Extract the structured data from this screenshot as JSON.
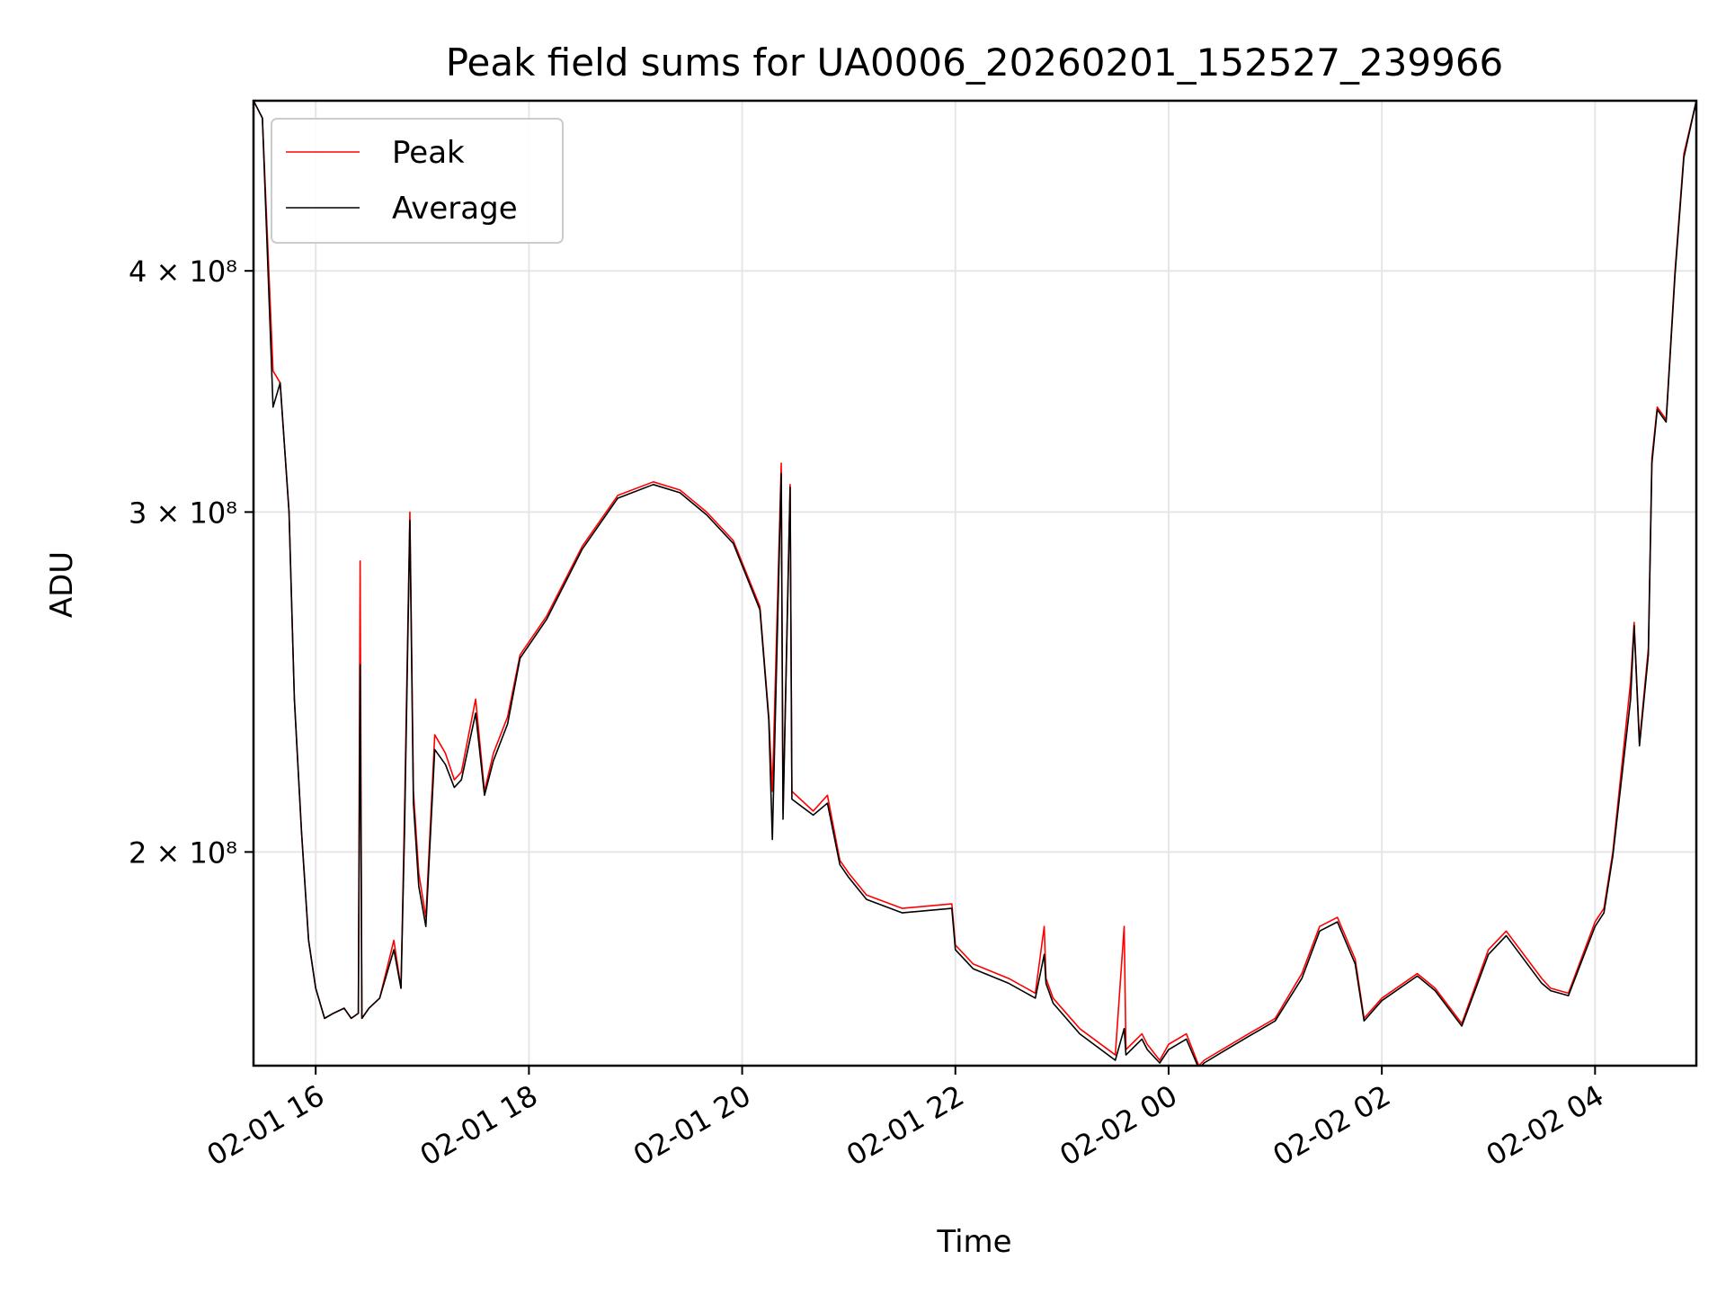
{
  "chart_data": {
    "type": "line",
    "title": "Peak field sums for UA0006_20260201_152527_239966",
    "xlabel": "Time",
    "ylabel": "ADU",
    "x_tick_labels": [
      "02-01 16",
      "02-01 18",
      "02-01 20",
      "02-01 22",
      "02-02 00",
      "02-02 02",
      "02-02 04"
    ],
    "y_tick_labels": [
      "2 × 10⁸",
      "3 × 10⁸",
      "4 × 10⁸"
    ],
    "y_ticks": [
      200000000,
      300000000,
      400000000
    ],
    "y_scale": "log",
    "ylim": [
      155000000,
      490000000
    ],
    "xlim": [
      "2026-02-01 15:25",
      "2026-02-02 04:57"
    ],
    "grid": true,
    "legend_position": "upper-left",
    "colors": {
      "peak": "#ff0000",
      "average": "#000000"
    },
    "series": [
      {
        "name": "Peak",
        "x": [
          "2026-02-01 15:25",
          "2026-02-01 15:30",
          "2026-02-01 15:36",
          "2026-02-01 15:40",
          "2026-02-01 15:45",
          "2026-02-01 15:48",
          "2026-02-01 15:52",
          "2026-02-01 15:56",
          "2026-02-01 16:00",
          "2026-02-01 16:05",
          "2026-02-01 16:10",
          "2026-02-01 16:16",
          "2026-02-01 16:20",
          "2026-02-01 16:24",
          "2026-02-01 16:25",
          "2026-02-01 16:26",
          "2026-02-01 16:30",
          "2026-02-01 16:36",
          "2026-02-01 16:44",
          "2026-02-01 16:48",
          "2026-02-01 16:50",
          "2026-02-01 16:53",
          "2026-02-01 16:55",
          "2026-02-01 16:58",
          "2026-02-01 17:02",
          "2026-02-01 17:07",
          "2026-02-01 17:13",
          "2026-02-01 17:18",
          "2026-02-01 17:22",
          "2026-02-01 17:30",
          "2026-02-01 17:35",
          "2026-02-01 17:40",
          "2026-02-01 17:48",
          "2026-02-01 17:55",
          "2026-02-01 18:10",
          "2026-02-01 18:30",
          "2026-02-01 18:50",
          "2026-02-01 19:10",
          "2026-02-01 19:25",
          "2026-02-01 19:40",
          "2026-02-01 19:55",
          "2026-02-01 20:10",
          "2026-02-01 20:15",
          "2026-02-01 20:17",
          "2026-02-01 20:22",
          "2026-02-01 20:23",
          "2026-02-01 20:27",
          "2026-02-01 20:28",
          "2026-02-01 20:40",
          "2026-02-01 20:48",
          "2026-02-01 20:55",
          "2026-02-01 21:00",
          "2026-02-01 21:10",
          "2026-02-01 21:30",
          "2026-02-01 21:58",
          "2026-02-01 22:00",
          "2026-02-01 22:10",
          "2026-02-01 22:30",
          "2026-02-01 22:45",
          "2026-02-01 22:50",
          "2026-02-01 22:51",
          "2026-02-01 22:55",
          "2026-02-01 23:10",
          "2026-02-01 23:30",
          "2026-02-01 23:35",
          "2026-02-01 23:36",
          "2026-02-01 23:45",
          "2026-02-01 23:48",
          "2026-02-01 23:55",
          "2026-02-02 00:00",
          "2026-02-02 00:10",
          "2026-02-02 00:17",
          "2026-02-02 00:20",
          "2026-02-02 00:30",
          "2026-02-02 00:45",
          "2026-02-02 01:00",
          "2026-02-02 01:15",
          "2026-02-02 01:25",
          "2026-02-02 01:35",
          "2026-02-02 01:45",
          "2026-02-02 01:50",
          "2026-02-02 02:00",
          "2026-02-02 02:20",
          "2026-02-02 02:30",
          "2026-02-02 02:45",
          "2026-02-02 03:00",
          "2026-02-02 03:10",
          "2026-02-02 03:30",
          "2026-02-02 03:35",
          "2026-02-02 03:45",
          "2026-02-02 04:00",
          "2026-02-02 04:05",
          "2026-02-02 04:10",
          "2026-02-02 04:20",
          "2026-02-02 04:22",
          "2026-02-02 04:25",
          "2026-02-02 04:30",
          "2026-02-02 04:32",
          "2026-02-02 04:35",
          "2026-02-02 04:40",
          "2026-02-02 04:45",
          "2026-02-02 04:50",
          "2026-02-02 04:57"
        ],
        "values": [
          490000000,
          480000000,
          355000000,
          350000000,
          300000000,
          240000000,
          205000000,
          180000000,
          170000000,
          164000000,
          165000000,
          166000000,
          164000000,
          165000000,
          283000000,
          164000000,
          166000000,
          168000000,
          180000000,
          170000000,
          210000000,
          300000000,
          215000000,
          195000000,
          185000000,
          230000000,
          225000000,
          218000000,
          220000000,
          240000000,
          215000000,
          225000000,
          235000000,
          253000000,
          265000000,
          288000000,
          306000000,
          311000000,
          308000000,
          300000000,
          290000000,
          268000000,
          235000000,
          215000000,
          318000000,
          210000000,
          310000000,
          215000000,
          210000000,
          214000000,
          198000000,
          195000000,
          190000000,
          187000000,
          188000000,
          179000000,
          175000000,
          172000000,
          169000000,
          183000000,
          172000000,
          168000000,
          162000000,
          157000000,
          183000000,
          158000000,
          161000000,
          159000000,
          156000000,
          159000000,
          161000000,
          155000000,
          156000000,
          158000000,
          161000000,
          164000000,
          173000000,
          183000000,
          185000000,
          176000000,
          164000000,
          168000000,
          173000000,
          170000000,
          163000000,
          178000000,
          182000000,
          172000000,
          170000000,
          169000000,
          184000000,
          187000000,
          200000000,
          245000000,
          263000000,
          228000000,
          255000000,
          320000000,
          340000000,
          335000000,
          400000000,
          460000000,
          490000000
        ]
      },
      {
        "name": "Average",
        "x": [
          "2026-02-01 15:25",
          "2026-02-01 15:30",
          "2026-02-01 15:36",
          "2026-02-01 15:40",
          "2026-02-01 15:45",
          "2026-02-01 15:48",
          "2026-02-01 15:52",
          "2026-02-01 15:56",
          "2026-02-01 16:00",
          "2026-02-01 16:05",
          "2026-02-01 16:10",
          "2026-02-01 16:16",
          "2026-02-01 16:20",
          "2026-02-01 16:24",
          "2026-02-01 16:25",
          "2026-02-01 16:26",
          "2026-02-01 16:30",
          "2026-02-01 16:36",
          "2026-02-01 16:44",
          "2026-02-01 16:48",
          "2026-02-01 16:50",
          "2026-02-01 16:53",
          "2026-02-01 16:55",
          "2026-02-01 16:58",
          "2026-02-01 17:02",
          "2026-02-01 17:07",
          "2026-02-01 17:13",
          "2026-02-01 17:18",
          "2026-02-01 17:22",
          "2026-02-01 17:30",
          "2026-02-01 17:35",
          "2026-02-01 17:40",
          "2026-02-01 17:48",
          "2026-02-01 17:55",
          "2026-02-01 18:10",
          "2026-02-01 18:30",
          "2026-02-01 18:50",
          "2026-02-01 19:10",
          "2026-02-01 19:25",
          "2026-02-01 19:40",
          "2026-02-01 19:55",
          "2026-02-01 20:10",
          "2026-02-01 20:15",
          "2026-02-01 20:17",
          "2026-02-01 20:22",
          "2026-02-01 20:23",
          "2026-02-01 20:27",
          "2026-02-01 20:28",
          "2026-02-01 20:40",
          "2026-02-01 20:48",
          "2026-02-01 20:55",
          "2026-02-01 21:00",
          "2026-02-01 21:10",
          "2026-02-01 21:30",
          "2026-02-01 21:58",
          "2026-02-01 22:00",
          "2026-02-01 22:10",
          "2026-02-01 22:30",
          "2026-02-01 22:45",
          "2026-02-01 22:50",
          "2026-02-01 22:51",
          "2026-02-01 22:55",
          "2026-02-01 23:10",
          "2026-02-01 23:30",
          "2026-02-01 23:35",
          "2026-02-01 23:36",
          "2026-02-01 23:45",
          "2026-02-01 23:48",
          "2026-02-01 23:55",
          "2026-02-02 00:00",
          "2026-02-02 00:10",
          "2026-02-02 00:17",
          "2026-02-02 00:20",
          "2026-02-02 00:30",
          "2026-02-02 00:45",
          "2026-02-02 01:00",
          "2026-02-02 01:15",
          "2026-02-02 01:25",
          "2026-02-02 01:35",
          "2026-02-02 01:45",
          "2026-02-02 01:50",
          "2026-02-02 02:00",
          "2026-02-02 02:20",
          "2026-02-02 02:30",
          "2026-02-02 02:45",
          "2026-02-02 03:00",
          "2026-02-02 03:10",
          "2026-02-02 03:30",
          "2026-02-02 03:35",
          "2026-02-02 03:45",
          "2026-02-02 04:00",
          "2026-02-02 04:05",
          "2026-02-02 04:10",
          "2026-02-02 04:20",
          "2026-02-02 04:22",
          "2026-02-02 04:25",
          "2026-02-02 04:30",
          "2026-02-02 04:32",
          "2026-02-02 04:35",
          "2026-02-02 04:40",
          "2026-02-02 04:45",
          "2026-02-02 04:50",
          "2026-02-02 04:57"
        ],
        "values": [
          490000000,
          480000000,
          340000000,
          350000000,
          300000000,
          240000000,
          205000000,
          180000000,
          170000000,
          164000000,
          165000000,
          166000000,
          164000000,
          165000000,
          250000000,
          164000000,
          166000000,
          168000000,
          178000000,
          170000000,
          205000000,
          297000000,
          212000000,
          192000000,
          183000000,
          226000000,
          222000000,
          216000000,
          218000000,
          236000000,
          214000000,
          223000000,
          233000000,
          252000000,
          264000000,
          287000000,
          305000000,
          310000000,
          307000000,
          299000000,
          289000000,
          267000000,
          234000000,
          203000000,
          314000000,
          208000000,
          309000000,
          213000000,
          209000000,
          212000000,
          197000000,
          194000000,
          189000000,
          186000000,
          187000000,
          178000000,
          174000000,
          171000000,
          168000000,
          177000000,
          171000000,
          167000000,
          161000000,
          156000000,
          162000000,
          157000000,
          160000000,
          158000000,
          155500000,
          158000000,
          160000000,
          154500000,
          155500000,
          157500000,
          160500000,
          163500000,
          172000000,
          182000000,
          184000000,
          175000000,
          163500000,
          167500000,
          172500000,
          169500000,
          162500000,
          177000000,
          181000000,
          171000000,
          169500000,
          168500000,
          183000000,
          186000000,
          199000000,
          240000000,
          262000000,
          227000000,
          253000000,
          318000000,
          339000000,
          334000000,
          398000000,
          458000000,
          490000000
        ]
      }
    ]
  }
}
